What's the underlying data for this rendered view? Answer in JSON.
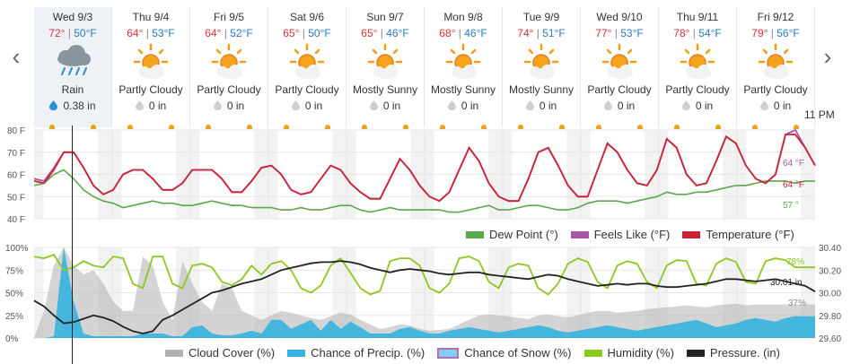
{
  "navigation": {
    "prev_icon": "chevron-left-icon",
    "next_icon": "chevron-right-icon",
    "prev": "‹",
    "next": "›"
  },
  "days": [
    {
      "name": "Wed 9/3",
      "hi": "72°",
      "lo": "50°F",
      "icon": "rain-cloud-icon",
      "condition": "Rain",
      "precip": "0.38 in",
      "active": true
    },
    {
      "name": "Thu 9/4",
      "hi": "64°",
      "lo": "53°F",
      "icon": "partly-cloudy-icon",
      "condition": "Partly Cloudy",
      "precip": "0 in"
    },
    {
      "name": "Fri 9/5",
      "hi": "64°",
      "lo": "52°F",
      "icon": "partly-cloudy-icon",
      "condition": "Partly Cloudy",
      "precip": "0 in"
    },
    {
      "name": "Sat 9/6",
      "hi": "65°",
      "lo": "50°F",
      "icon": "partly-cloudy-icon",
      "condition": "Partly Cloudy",
      "precip": "0 in"
    },
    {
      "name": "Sun 9/7",
      "hi": "65°",
      "lo": "46°F",
      "icon": "mostly-sunny-icon",
      "condition": "Mostly Sunny",
      "precip": "0 in"
    },
    {
      "name": "Mon 9/8",
      "hi": "68°",
      "lo": "46°F",
      "icon": "mostly-sunny-icon",
      "condition": "Mostly Sunny",
      "precip": "0 in"
    },
    {
      "name": "Tue 9/9",
      "hi": "74°",
      "lo": "51°F",
      "icon": "mostly-sunny-icon",
      "condition": "Mostly Sunny",
      "precip": "0 in"
    },
    {
      "name": "Wed 9/10",
      "hi": "77°",
      "lo": "53°F",
      "icon": "partly-cloudy-icon",
      "condition": "Partly Cloudy",
      "precip": "0 in"
    },
    {
      "name": "Thu 9/11",
      "hi": "78°",
      "lo": "54°F",
      "icon": "partly-cloudy-icon",
      "condition": "Partly Cloudy",
      "precip": "0 in"
    },
    {
      "name": "Fri 9/12",
      "hi": "79°",
      "lo": "56°F",
      "icon": "partly-cloudy-icon",
      "condition": "Partly Cloudy",
      "precip": "0 in"
    }
  ],
  "time_label": "11 PM",
  "colors": {
    "dew": "#5aa84a",
    "feels": "#a855a8",
    "temp": "#cc2233",
    "cloud": "#b0b0b0",
    "precip": "#35b4e0",
    "snow": "#b26db8",
    "humidity": "#8cc820",
    "pressure": "#222222"
  },
  "chart_data": [
    {
      "type": "line",
      "y_ticks": [
        "80 F",
        "70 F",
        "60 F",
        "50 F",
        "40 F"
      ],
      "ylim": [
        40,
        80
      ],
      "series": [
        {
          "name": "Dew Point (°)",
          "end_label": "57 °",
          "values": [
            55,
            56,
            60,
            62,
            58,
            53,
            50,
            48,
            47,
            45,
            46,
            47,
            48,
            47,
            47,
            46,
            46,
            47,
            48,
            47,
            46,
            46,
            45,
            45,
            45,
            44,
            44,
            45,
            44,
            44,
            45,
            46,
            46,
            44,
            43,
            44,
            45,
            44,
            44,
            44,
            44,
            44,
            43,
            43,
            44,
            45,
            46,
            44,
            44,
            45,
            46,
            46,
            45,
            44,
            44,
            45,
            47,
            48,
            48,
            48,
            47,
            48,
            49,
            50,
            52,
            51,
            51,
            52,
            52,
            53,
            54,
            55,
            55,
            56,
            57,
            57,
            57,
            56,
            57,
            57
          ]
        },
        {
          "name": "Feels Like (°F)",
          "end_label": "64 °F",
          "values": [
            58,
            57,
            63,
            70,
            70,
            63,
            55,
            51,
            53,
            60,
            62,
            62,
            58,
            53,
            53,
            56,
            62,
            62,
            62,
            58,
            52,
            52,
            57,
            63,
            64,
            60,
            53,
            51,
            52,
            58,
            64,
            62,
            56,
            52,
            49,
            49,
            58,
            67,
            62,
            55,
            50,
            48,
            52,
            62,
            72,
            66,
            56,
            50,
            48,
            48,
            58,
            70,
            72,
            64,
            55,
            50,
            50,
            62,
            74,
            70,
            62,
            56,
            55,
            62,
            76,
            72,
            60,
            55,
            56,
            66,
            77,
            74,
            64,
            58,
            56,
            60,
            78,
            80,
            72,
            64
          ]
        },
        {
          "name": "Temperature (°F)",
          "end_label": "64 °F",
          "values": [
            57,
            56,
            62,
            70,
            70,
            63,
            55,
            51,
            53,
            60,
            62,
            62,
            58,
            53,
            53,
            56,
            62,
            62,
            62,
            58,
            52,
            52,
            57,
            63,
            64,
            60,
            53,
            51,
            52,
            58,
            64,
            62,
            56,
            52,
            49,
            49,
            58,
            67,
            62,
            55,
            50,
            48,
            52,
            62,
            72,
            66,
            56,
            50,
            48,
            48,
            58,
            70,
            72,
            64,
            55,
            50,
            50,
            62,
            74,
            70,
            62,
            56,
            55,
            62,
            76,
            72,
            60,
            55,
            56,
            66,
            77,
            74,
            64,
            58,
            56,
            60,
            78,
            78,
            72,
            64
          ]
        }
      ]
    },
    {
      "type": "line",
      "y_ticks": [
        "100%",
        "75%",
        "50%",
        "25%",
        "0%"
      ],
      "y2_ticks": [
        "30.40",
        "30.20",
        "30.00",
        "29.80",
        "29.60"
      ],
      "ylim": [
        0,
        100
      ],
      "y2lim": [
        29.6,
        30.4
      ],
      "series": [
        {
          "name": "Cloud Cover (%)",
          "end_label": "37%",
          "values": [
            0,
            30,
            80,
            100,
            80,
            70,
            75,
            60,
            40,
            30,
            30,
            90,
            80,
            40,
            20,
            85,
            60,
            40,
            30,
            60,
            55,
            30,
            25,
            20,
            25,
            30,
            28,
            25,
            22,
            20,
            24,
            28,
            26,
            20,
            15,
            10,
            12,
            15,
            14,
            10,
            8,
            9,
            10,
            15,
            20,
            25,
            26,
            25,
            24,
            22,
            21,
            25,
            26,
            24,
            23,
            25,
            28,
            30,
            30,
            28,
            29,
            30,
            32,
            33,
            34,
            35,
            36,
            35,
            34,
            36,
            37,
            38,
            36,
            37,
            37,
            37,
            37,
            37,
            37,
            37
          ]
        },
        {
          "name": "Chance of Precip. (%)",
          "end_label": "24%",
          "values": [
            0,
            0,
            2,
            100,
            40,
            5,
            2,
            2,
            2,
            2,
            2,
            5,
            5,
            5,
            2,
            2,
            12,
            14,
            5,
            3,
            3,
            5,
            8,
            5,
            20,
            20,
            10,
            15,
            20,
            8,
            20,
            10,
            18,
            12,
            5,
            5,
            5,
            10,
            12,
            8,
            5,
            5,
            8,
            10,
            12,
            10,
            8,
            6,
            8,
            10,
            12,
            14,
            12,
            8,
            6,
            8,
            10,
            12,
            14,
            12,
            10,
            8,
            10,
            12,
            14,
            16,
            18,
            20,
            16,
            12,
            14,
            16,
            20,
            22,
            20,
            18,
            22,
            24,
            24,
            24
          ]
        },
        {
          "name": "Chance of Snow (%)",
          "end_label": "",
          "values": []
        },
        {
          "name": "Humidity (%)",
          "end_label": "78%",
          "values": [
            90,
            88,
            92,
            75,
            78,
            85,
            80,
            78,
            90,
            88,
            60,
            55,
            90,
            90,
            60,
            55,
            80,
            82,
            78,
            62,
            58,
            65,
            80,
            70,
            82,
            85,
            75,
            55,
            50,
            58,
            80,
            88,
            72,
            55,
            48,
            52,
            85,
            88,
            88,
            80,
            55,
            50,
            60,
            88,
            90,
            85,
            62,
            55,
            78,
            82,
            80,
            55,
            48,
            60,
            82,
            88,
            84,
            62,
            55,
            80,
            85,
            82,
            62,
            55,
            80,
            86,
            85,
            60,
            58,
            82,
            88,
            84,
            62,
            60,
            85,
            88,
            86,
            78,
            78,
            78
          ]
        },
        {
          "name": "Pressure. (in)",
          "end_label": "30.01 in",
          "values": [
            29.93,
            29.88,
            29.8,
            29.73,
            29.74,
            29.77,
            29.8,
            29.78,
            29.75,
            29.7,
            29.66,
            29.64,
            29.66,
            29.76,
            29.8,
            29.85,
            29.9,
            29.95,
            30.0,
            30.02,
            30.05,
            30.08,
            30.1,
            30.12,
            30.16,
            30.2,
            30.22,
            30.24,
            30.26,
            30.27,
            30.27,
            30.28,
            30.27,
            30.25,
            30.22,
            30.2,
            30.18,
            30.2,
            30.21,
            30.2,
            30.19,
            30.17,
            30.16,
            30.17,
            30.18,
            30.18,
            30.16,
            30.15,
            30.14,
            30.13,
            30.12,
            30.14,
            30.16,
            30.15,
            30.12,
            30.1,
            30.08,
            30.06,
            30.07,
            30.08,
            30.07,
            30.08,
            30.08,
            30.06,
            30.05,
            30.05,
            30.06,
            30.07,
            30.08,
            30.1,
            30.12,
            30.12,
            30.11,
            30.1,
            30.11,
            30.12,
            30.1,
            30.08,
            30.06,
            30.01
          ]
        }
      ]
    }
  ]
}
